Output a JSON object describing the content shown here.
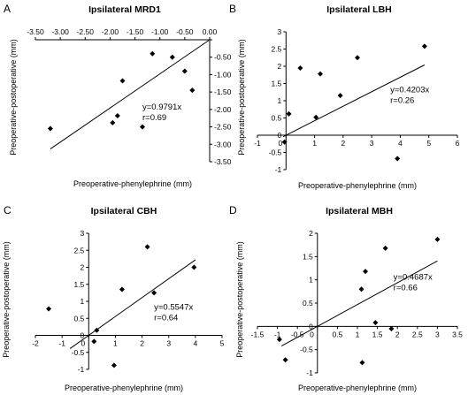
{
  "chart_data": [
    {
      "type": "scatter",
      "panel_letter": "A",
      "title": "Ipsilateral MRD1",
      "xlabel": "Preoperative-phenylephrine (mm)",
      "ylabel": "Preoperative-postoperative (mm)",
      "xlim": [
        -3.5,
        0
      ],
      "ylim": [
        -3.5,
        0
      ],
      "x_axis_position": "top",
      "y_axis_position": "right",
      "xticks": [
        -3.5,
        -3,
        -2.5,
        -2,
        -1.5,
        -1,
        -0.5,
        0
      ],
      "yticks": [
        0,
        -0.5,
        -1,
        -1.5,
        -2,
        -2.5,
        -3,
        -3.5
      ],
      "xtick_labels": [
        "-3.50",
        "-3.00",
        "-2.50",
        "-2.00",
        "-1.50",
        "-1.00",
        "-0.50",
        "0.00"
      ],
      "ytick_labels": [
        "0.00",
        "-0.50",
        "-1.00",
        "-1.50",
        "-2.00",
        "-2.50",
        "-3.00",
        "-3.50"
      ],
      "points": [
        {
          "x": -3.2,
          "y": -2.55
        },
        {
          "x": -1.95,
          "y": -2.38
        },
        {
          "x": -1.85,
          "y": -2.18
        },
        {
          "x": -1.75,
          "y": -1.18
        },
        {
          "x": -1.35,
          "y": -2.5
        },
        {
          "x": -1.15,
          "y": -0.4
        },
        {
          "x": -0.75,
          "y": -0.5
        },
        {
          "x": -0.5,
          "y": -0.9
        },
        {
          "x": -0.35,
          "y": -1.45
        }
      ],
      "fit_line": {
        "slope": 0.9791,
        "intercept": 0
      },
      "fit_range": [
        -3.2,
        -0.02
      ],
      "annotation": {
        "equation": "y=0.9791x",
        "r": "r=0.69",
        "x": -1.35,
        "y": -2.0
      }
    },
    {
      "type": "scatter",
      "panel_letter": "B",
      "title": "Ipsilateral LBH",
      "xlabel": "Preoperative-phenylephrine (mm)",
      "ylabel": "Preoperative-postoperative (mm)",
      "xlim": [
        -1,
        6
      ],
      "ylim": [
        -1,
        3
      ],
      "x_axis_position": "zero",
      "y_axis_position": "zero",
      "xticks": [
        -1,
        0,
        1,
        2,
        3,
        4,
        5,
        6
      ],
      "yticks": [
        -1,
        -0.5,
        0,
        0.5,
        1,
        1.5,
        2,
        2.5,
        3
      ],
      "xtick_labels": [
        "-1",
        "0",
        "1",
        "2",
        "3",
        "4",
        "5",
        "6"
      ],
      "ytick_labels": [
        "-1",
        "-0.5",
        "0",
        "0.5",
        "1",
        "1.5",
        "2",
        "2.5",
        "3"
      ],
      "points": [
        {
          "x": -0.05,
          "y": -0.2
        },
        {
          "x": 0.1,
          "y": 0.62
        },
        {
          "x": 0.5,
          "y": 1.95
        },
        {
          "x": 1.05,
          "y": 0.52
        },
        {
          "x": 1.2,
          "y": 1.78
        },
        {
          "x": 1.9,
          "y": 1.15
        },
        {
          "x": 2.5,
          "y": 2.25
        },
        {
          "x": 3.9,
          "y": -0.68
        },
        {
          "x": 4.85,
          "y": 2.58
        }
      ],
      "fit_line": {
        "slope": 0.4203,
        "intercept": 0
      },
      "fit_range": [
        -0.1,
        4.85
      ],
      "annotation": {
        "equation": "y=0.4203x",
        "r": "r=0.26",
        "x": 3.65,
        "y": 1.25
      }
    },
    {
      "type": "scatter",
      "panel_letter": "C",
      "title": "Ipsilateral CBH",
      "xlabel": "Preoperative-phenylephrine (mm)",
      "ylabel": "Preoperative-postoperative (mm)",
      "xlim": [
        -2,
        5
      ],
      "ylim": [
        -1,
        3
      ],
      "x_axis_position": "zero",
      "y_axis_position": "zero",
      "xticks": [
        -2,
        -1,
        0,
        1,
        2,
        3,
        4,
        5
      ],
      "yticks": [
        -1,
        -0.5,
        0,
        0.5,
        1,
        1.5,
        2,
        2.5,
        3
      ],
      "xtick_labels": [
        "-2",
        "-1",
        "0",
        "1",
        "2",
        "3",
        "4",
        "5"
      ],
      "ytick_labels": [
        "-1",
        "-0.5",
        "0",
        "0.5",
        "1",
        "1.5",
        "2",
        "2.5",
        "3"
      ],
      "points": [
        {
          "x": -1.5,
          "y": 0.78
        },
        {
          "x": 0.2,
          "y": -0.18
        },
        {
          "x": 0.3,
          "y": 0.15
        },
        {
          "x": 0.95,
          "y": -0.88
        },
        {
          "x": 1.25,
          "y": 1.35
        },
        {
          "x": 2.2,
          "y": 2.6
        },
        {
          "x": 2.45,
          "y": 1.25
        },
        {
          "x": 3.95,
          "y": 2.0
        }
      ],
      "fit_line": {
        "slope": 0.5547,
        "intercept": 0
      },
      "fit_range": [
        -0.7,
        4.0
      ],
      "annotation": {
        "equation": "y=0.5547x",
        "r": "r=0.64",
        "x": 2.45,
        "y": 0.75
      }
    },
    {
      "type": "scatter",
      "panel_letter": "D",
      "title": "Ipsilateral MBH",
      "xlabel": "Preoperative-phenylephrine (mm)",
      "ylabel": "Preoperative-postoperative (mm)",
      "xlim": [
        -1.5,
        3.5
      ],
      "ylim": [
        -1,
        2
      ],
      "x_axis_position": "zero",
      "y_axis_position": "zero",
      "xticks": [
        -1.5,
        -1,
        -0.5,
        0,
        0.5,
        1,
        1.5,
        2,
        2.5,
        3,
        3.5
      ],
      "yticks": [
        -1,
        -0.5,
        0,
        0.5,
        1,
        1.5,
        2
      ],
      "xtick_labels": [
        "-1.5",
        "-1",
        "-0.5",
        "0",
        "0.5",
        "1",
        "1.5",
        "2",
        "2.5",
        "3",
        "3.5"
      ],
      "ytick_labels": [
        "-1",
        "-0.5",
        "0",
        "0.5",
        "1",
        "1.5",
        "2"
      ],
      "points": [
        {
          "x": -0.95,
          "y": -0.28
        },
        {
          "x": -0.8,
          "y": -0.72
        },
        {
          "x": 1.1,
          "y": 0.8
        },
        {
          "x": 1.12,
          "y": -0.78
        },
        {
          "x": 1.2,
          "y": 1.18
        },
        {
          "x": 1.45,
          "y": 0.08
        },
        {
          "x": 1.7,
          "y": 1.68
        },
        {
          "x": 1.85,
          "y": -0.05
        },
        {
          "x": 3.0,
          "y": 1.87
        }
      ],
      "fit_line": {
        "slope": 0.4687,
        "intercept": 0
      },
      "fit_range": [
        -0.9,
        3.0
      ],
      "annotation": {
        "equation": "y=0.4687x",
        "r": "r=0.66",
        "x": 1.9,
        "y": 1.0
      }
    }
  ]
}
